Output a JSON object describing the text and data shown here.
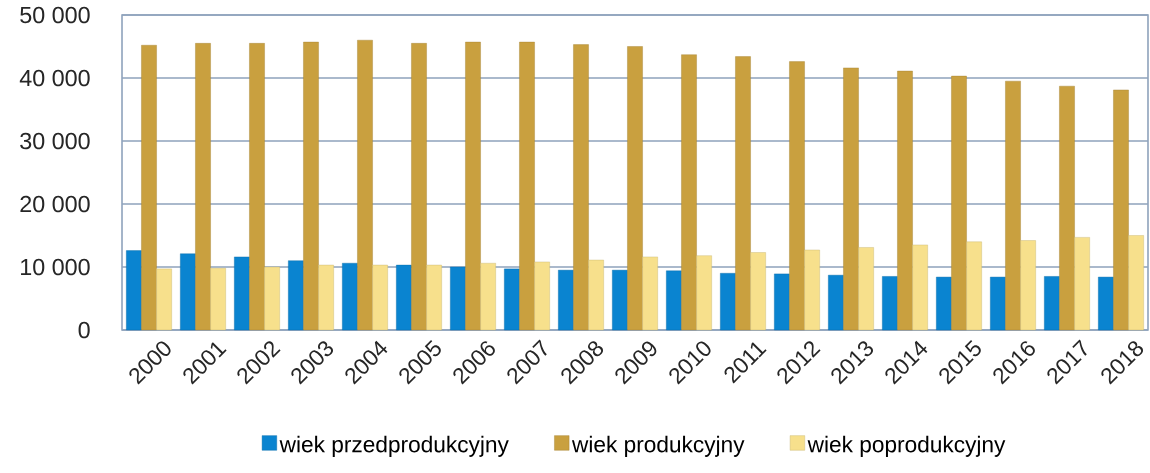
{
  "chart_data": {
    "type": "bar",
    "categories": [
      "2000",
      "2001",
      "2002",
      "2003",
      "2004",
      "2005",
      "2006",
      "2007",
      "2008",
      "2009",
      "2010",
      "2011",
      "2012",
      "2013",
      "2014",
      "2015",
      "2016",
      "2017",
      "2018"
    ],
    "series": [
      {
        "name": "wiek przedprodukcyjny",
        "color": "#0a84d0",
        "values": [
          12600,
          12100,
          11600,
          11000,
          10600,
          10300,
          10000,
          9700,
          9500,
          9500,
          9400,
          9000,
          8900,
          8700,
          8500,
          8400,
          8400,
          8500,
          8400
        ]
      },
      {
        "name": "wiek produkcyjny",
        "color": "#c9a03f",
        "values": [
          45200,
          45500,
          45500,
          45700,
          46000,
          45500,
          45700,
          45700,
          45300,
          45000,
          43700,
          43400,
          42600,
          41600,
          41100,
          40300,
          39500,
          38700,
          38100
        ]
      },
      {
        "name": "wiek poprodukcyjny",
        "color": "#f7e08c",
        "values": [
          9700,
          9800,
          10000,
          10300,
          10300,
          10300,
          10600,
          10800,
          11100,
          11600,
          11800,
          12300,
          12700,
          13100,
          13500,
          14000,
          14200,
          14700,
          15000
        ]
      }
    ],
    "ylim": [
      0,
      50000
    ],
    "yticks": [
      {
        "value": 0,
        "label": "0"
      },
      {
        "value": 10000,
        "label": "10 000"
      },
      {
        "value": 20000,
        "label": "20 000"
      },
      {
        "value": 30000,
        "label": "30 000"
      },
      {
        "value": 40000,
        "label": "40 000"
      },
      {
        "value": 50000,
        "label": "50 000"
      }
    ],
    "grid": "y",
    "legend": "bottom"
  }
}
